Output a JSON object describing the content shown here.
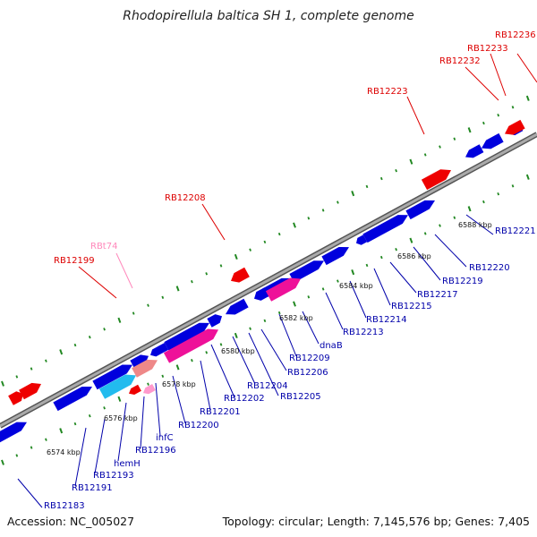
{
  "title": "Rhodopirellula baltica SH 1, complete genome",
  "footer": {
    "accession": "Accession: NC_005027",
    "summary": "Topology: circular; Length: 7,145,576 bp; Genes: 7,405"
  },
  "colors": {
    "forward_gene": "#0000dd",
    "reverse_gene": "#0000dd",
    "rna_gene": "#ee0000",
    "trna_gene": "#ff99cc",
    "cds_highlight_magenta": "#ee1199",
    "cds_highlight_cyan": "#22bbee",
    "cds_highlight_salmon": "#ee8888",
    "backbone": "#999999",
    "ticks": "#228822",
    "label_blue": "#0000aa",
    "label_red": "#dd0000",
    "label_pink": "#ff88bb"
  },
  "scale_labels": [
    "6574 kbp",
    "6576 kbp",
    "6578 kbp",
    "6580 kbp",
    "6582 kbp",
    "6584 kbp",
    "6586 kbp",
    "6588 kbp"
  ],
  "top_labels": [
    {
      "text": "RB12236",
      "color": "red"
    },
    {
      "text": "RB12233",
      "color": "red"
    },
    {
      "text": "RB12232",
      "color": "red"
    },
    {
      "text": "RB12223",
      "color": "red"
    },
    {
      "text": "RB12208",
      "color": "red"
    },
    {
      "text": "RBt74",
      "color": "pink"
    },
    {
      "text": "RB12199",
      "color": "red"
    }
  ],
  "bottom_labels": [
    "RB12221",
    "RB12220",
    "RB12219",
    "RB12217",
    "RB12215",
    "RB12214",
    "RB12213",
    "dnaB",
    "RB12209",
    "RB12206",
    "RB12205",
    "RB12204",
    "RB12202",
    "RB12201",
    "RB12200",
    "infC",
    "RB12196",
    "hemH",
    "RB12193",
    "RB12191",
    "RB12183"
  ]
}
